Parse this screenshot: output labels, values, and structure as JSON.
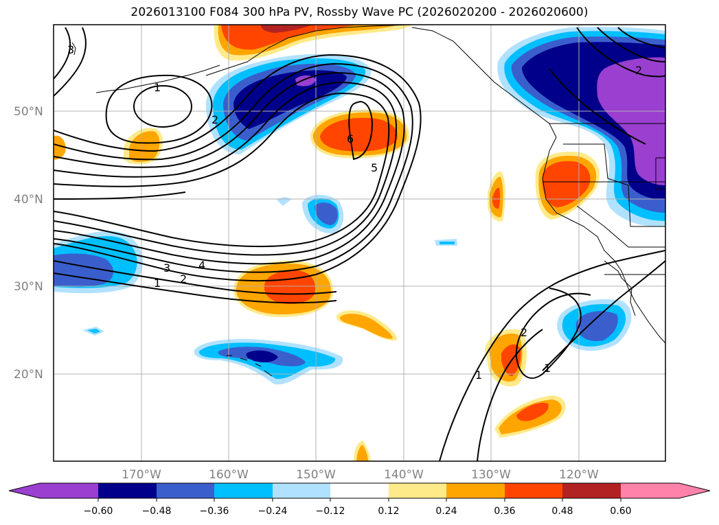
{
  "title": "2026013100 F084 300 hPa PV, Rossby Wave PC (2026020200 - 2026020600)",
  "map": {
    "lat_labels": [
      "50°N",
      "40°N",
      "30°N",
      "20°N"
    ],
    "lon_labels": [
      "170°W",
      "160°W",
      "150°W",
      "140°W",
      "130°W",
      "120°W"
    ],
    "contour_labels": [
      "1",
      "2",
      "3",
      "4",
      "5",
      "6",
      "1",
      "2",
      "3",
      "1",
      "1",
      "2",
      "2"
    ]
  },
  "colorbar": {
    "ticks": [
      "−0.60",
      "−0.48",
      "−0.36",
      "−0.24",
      "−0.12",
      "0.12",
      "0.24",
      "0.36",
      "0.48",
      "0.60"
    ],
    "colors": [
      "#9a3fd0",
      "#00008b",
      "#3a5fcd",
      "#00bfff",
      "#b0e2ff",
      "#ffffff",
      "#ffea8a",
      "#ffa500",
      "#ff4500",
      "#b22222",
      "#ff82ab",
      "#ff82ab"
    ]
  },
  "colors": {
    "purple": "#9a3fd0",
    "navy": "#00008b",
    "royal": "#3a5fcd",
    "sky": "#00bfff",
    "light_sky": "#b0e2ff",
    "yellow": "#ffea8a",
    "orange": "#ffa500",
    "red_orange": "#ff4500"
  }
}
